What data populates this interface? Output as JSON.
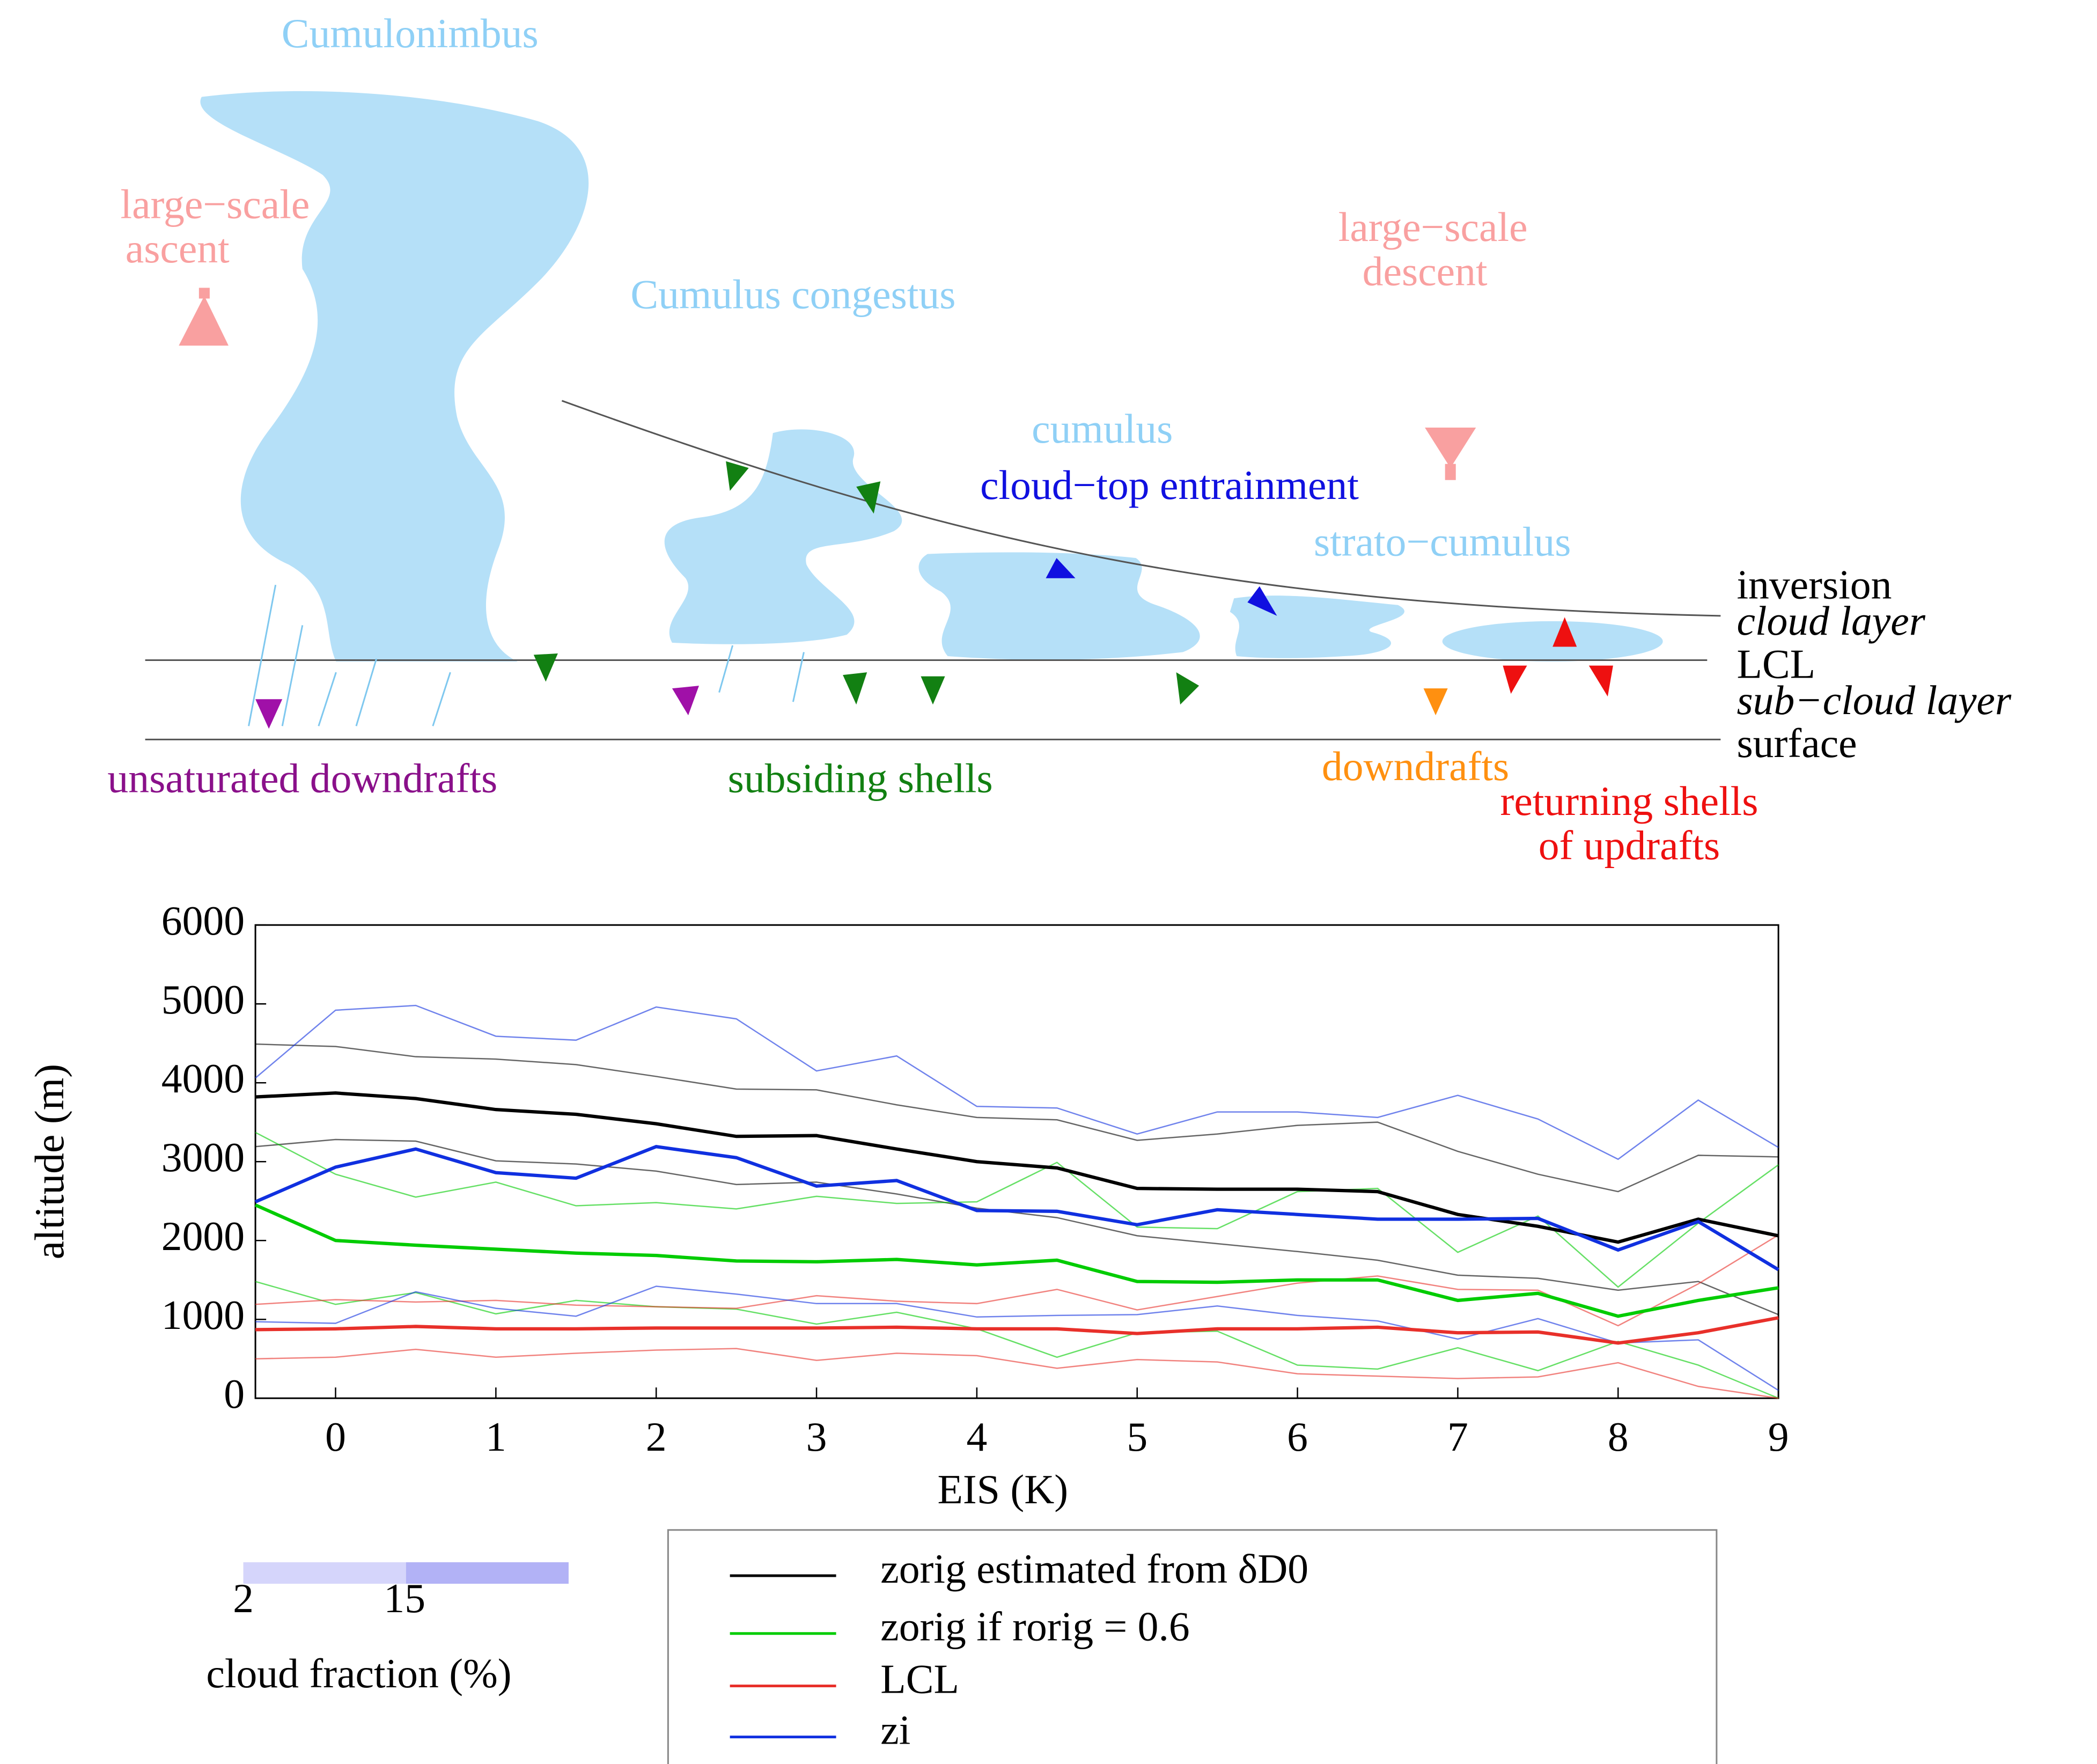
{
  "diagram": {
    "cumulonimbus": "Cumulonimbus",
    "congestus": "Cumulus congestus",
    "cumulus": "cumulus",
    "stratocumulus": "strato−cumulus",
    "entrainment": "cloud−top entrainment",
    "ascent_1": "large−scale",
    "ascent_2": "ascent",
    "descent_1": "large−scale",
    "descent_2": "descent",
    "inversion": "inversion",
    "cloud_layer": "cloud layer",
    "lcl": "LCL",
    "subcloud_layer": "sub−cloud layer",
    "surface": "surface",
    "unsaturated": "unsaturated downdrafts",
    "subsiding": "subsiding shells",
    "downdrafts": "downdrafts",
    "returning_1": "returning shells",
    "returning_2": "of updrafts"
  },
  "chart_data": {
    "type": "line",
    "xlabel": "EIS (K)",
    "ylabel": "altitude (m)",
    "x": [
      -0.5,
      0,
      0.5,
      1,
      1.5,
      2,
      2.5,
      3,
      3.5,
      4,
      4.5,
      5,
      5.5,
      6,
      6.5,
      7,
      7.5,
      8,
      8.5,
      9
    ],
    "xlim": [
      -0.5,
      9
    ],
    "xticks": [
      0,
      1,
      2,
      3,
      4,
      5,
      6,
      7,
      8,
      9
    ],
    "ylim": [
      0,
      6000
    ],
    "yticks": [
      0,
      1000,
      2000,
      3000,
      4000,
      5000,
      6000
    ],
    "series": [
      {
        "name": "zorig estimated from δD0",
        "color": "#000000",
        "values": [
          3820,
          3870,
          3800,
          3660,
          3600,
          3480,
          3320,
          3330,
          3160,
          3000,
          2920,
          2660,
          2650,
          2650,
          2620,
          2330,
          2180,
          1980,
          2270,
          2060
        ],
        "upper": [
          4490,
          4460,
          4330,
          4300,
          4230,
          4080,
          3920,
          3910,
          3720,
          3560,
          3530,
          3270,
          3350,
          3460,
          3500,
          3130,
          2840,
          2620,
          3080,
          3060
        ],
        "lower": [
          3190,
          3280,
          3260,
          3010,
          2970,
          2880,
          2710,
          2740,
          2590,
          2410,
          2290,
          2060,
          1960,
          1860,
          1750,
          1560,
          1520,
          1370,
          1480,
          1060
        ]
      },
      {
        "name": "zorig if rorig = 0.6",
        "color": "#00cc00",
        "values": [
          2450,
          2000,
          1940,
          1890,
          1840,
          1810,
          1740,
          1730,
          1760,
          1690,
          1750,
          1480,
          1470,
          1500,
          1500,
          1240,
          1330,
          1040,
          1240,
          1400
        ],
        "upper": [
          3370,
          2840,
          2550,
          2740,
          2440,
          2480,
          2400,
          2560,
          2470,
          2490,
          2990,
          2170,
          2150,
          2620,
          2660,
          1850,
          2310,
          1410,
          2220,
          2960
        ],
        "lower": [
          1480,
          1190,
          1340,
          1070,
          1240,
          1160,
          1130,
          940,
          1090,
          880,
          520,
          830,
          850,
          420,
          370,
          640,
          350,
          720,
          420,
          0
        ]
      },
      {
        "name": "LCL",
        "color": "#e8302a",
        "values": [
          870,
          880,
          910,
          880,
          880,
          890,
          890,
          890,
          900,
          880,
          880,
          820,
          880,
          880,
          900,
          830,
          840,
          700,
          830,
          1020
        ],
        "upper": [
          1190,
          1250,
          1220,
          1240,
          1180,
          1160,
          1140,
          1300,
          1230,
          1200,
          1380,
          1120,
          1290,
          1460,
          1550,
          1380,
          1370,
          920,
          1450,
          2070
        ],
        "lower": [
          500,
          520,
          620,
          520,
          570,
          610,
          630,
          480,
          570,
          540,
          380,
          490,
          460,
          310,
          280,
          250,
          270,
          450,
          150,
          0
        ]
      },
      {
        "name": "zi",
        "color": "#1030e0",
        "values": [
          2490,
          2930,
          3160,
          2860,
          2790,
          3190,
          3050,
          2690,
          2760,
          2380,
          2370,
          2200,
          2390,
          2330,
          2270,
          2270,
          2280,
          1880,
          2240,
          1630
        ],
        "upper": [
          4060,
          4920,
          4980,
          4590,
          4540,
          4960,
          4810,
          4150,
          4340,
          3700,
          3680,
          3350,
          3630,
          3630,
          3560,
          3840,
          3540,
          3030,
          3780,
          3180
        ],
        "lower": [
          970,
          950,
          1350,
          1140,
          1040,
          1420,
          1320,
          1200,
          1200,
          1030,
          1050,
          1060,
          1170,
          1050,
          980,
          750,
          1010,
          700,
          740,
          100
        ]
      }
    ],
    "colorbar": {
      "label": "cloud fraction (%)",
      "ticks": [
        2,
        15
      ],
      "colors": [
        "#d5d5fb",
        "#b2b2f6"
      ]
    }
  }
}
